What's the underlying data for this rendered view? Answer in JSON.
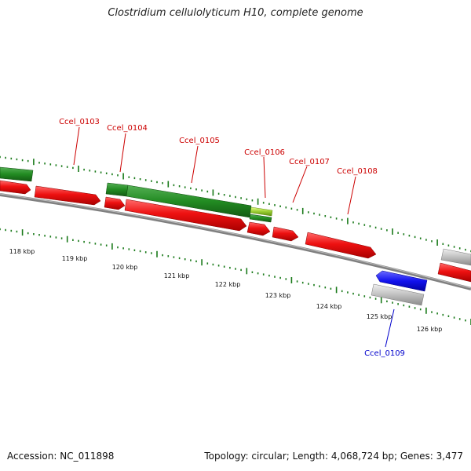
{
  "title": "Clostridium cellulolyticum H10, complete genome",
  "footer": {
    "accession": "Accession: NC_011898",
    "stats": "Topology: circular; Length: 4,068,724 bp; Genes: 3,477"
  },
  "scale_labels": [
    "118 kbp",
    "119 kbp",
    "120 kbp",
    "121 kbp",
    "122 kbp",
    "123 kbp",
    "124 kbp",
    "125 kbp",
    "126 kbp"
  ],
  "gene_labels": [
    {
      "text": "Ccel_0103",
      "color": "#cc0000"
    },
    {
      "text": "Ccel_0104",
      "color": "#cc0000"
    },
    {
      "text": "Ccel_0105",
      "color": "#cc0000"
    },
    {
      "text": "Ccel_0106",
      "color": "#cc0000"
    },
    {
      "text": "Ccel_0107",
      "color": "#cc0000"
    },
    {
      "text": "Ccel_0108",
      "color": "#cc0000"
    },
    {
      "text": "Ccel_0109",
      "color": "#0000cc"
    }
  ],
  "colors": {
    "cds": "#ee1111",
    "green_feature": "#228b22",
    "yellow_green_feature": "#9acd32",
    "blue_feature": "#1111ee",
    "grey_feature": "#c0c0c0",
    "backbone": "#808080",
    "tick": "#1a7a1a"
  }
}
